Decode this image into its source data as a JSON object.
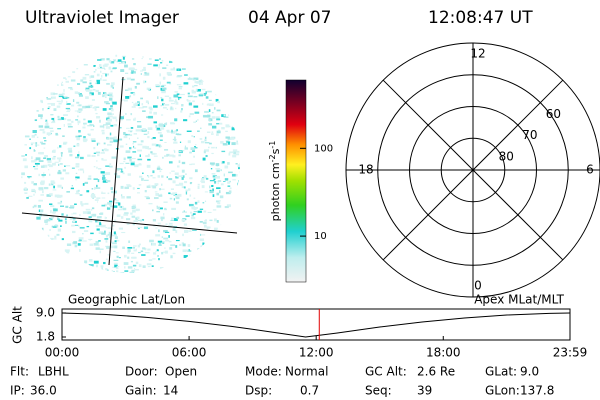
{
  "header": {
    "instrument": "Ultraviolet Imager",
    "date": "04 Apr 07",
    "time": "12:08:47 UT"
  },
  "colorbar": {
    "label": [
      "photon cm",
      "-2",
      "s",
      "-1"
    ],
    "log": true,
    "lim": [
      3,
      600
    ],
    "ticks": [
      10,
      100
    ]
  },
  "polar": {
    "mlt_labels": [
      12,
      6,
      0,
      18
    ],
    "lat_lim": [
      50,
      90
    ],
    "lat_ticks": [
      60,
      70,
      80
    ]
  },
  "strip": {
    "left_label": "Geographic Lat/Lon",
    "right_label": "Apex MLat/MLT",
    "ylabel": "GC Alt",
    "ylim": [
      1.8,
      9.0
    ],
    "yticks": [
      {
        "value": 9.0,
        "label": "9.0"
      },
      1.8
    ],
    "xlim": [
      0,
      23.983
    ],
    "xticks": [
      {
        "value": 0,
        "label": "00:00"
      },
      {
        "value": 6,
        "label": "06:00"
      },
      {
        "value": 12,
        "label": "12:00"
      },
      {
        "value": 18,
        "label": "18:00"
      },
      {
        "value": 23.983,
        "label": "23:59"
      }
    ],
    "x": [
      0,
      2,
      4,
      6,
      8,
      10,
      11.5,
      13,
      15,
      17,
      19,
      21,
      23,
      23.983
    ],
    "values": [
      9.0,
      8.6,
      7.7,
      6.5,
      5.0,
      3.2,
      1.8,
      3.0,
      4.8,
      6.3,
      7.5,
      8.4,
      8.9,
      9.0
    ],
    "current_time": 12.146,
    "curve_color": "#000000",
    "marker_color": "#e00000"
  },
  "info": [
    [
      [
        "Flt:",
        "LBHL"
      ],
      [
        "Door:",
        "Open"
      ],
      [
        "Mode:",
        "Normal"
      ],
      [
        "GC Alt:",
        "2.6 Re"
      ],
      [
        "GLat:",
        "9.0"
      ]
    ],
    [
      [
        "IP:",
        "36.0"
      ],
      [
        "Gain:",
        "14"
      ],
      [
        "Dsp:",
        "0.7"
      ],
      [
        "Seq:",
        "39"
      ],
      [
        "GLon:",
        "137.8"
      ]
    ]
  ]
}
